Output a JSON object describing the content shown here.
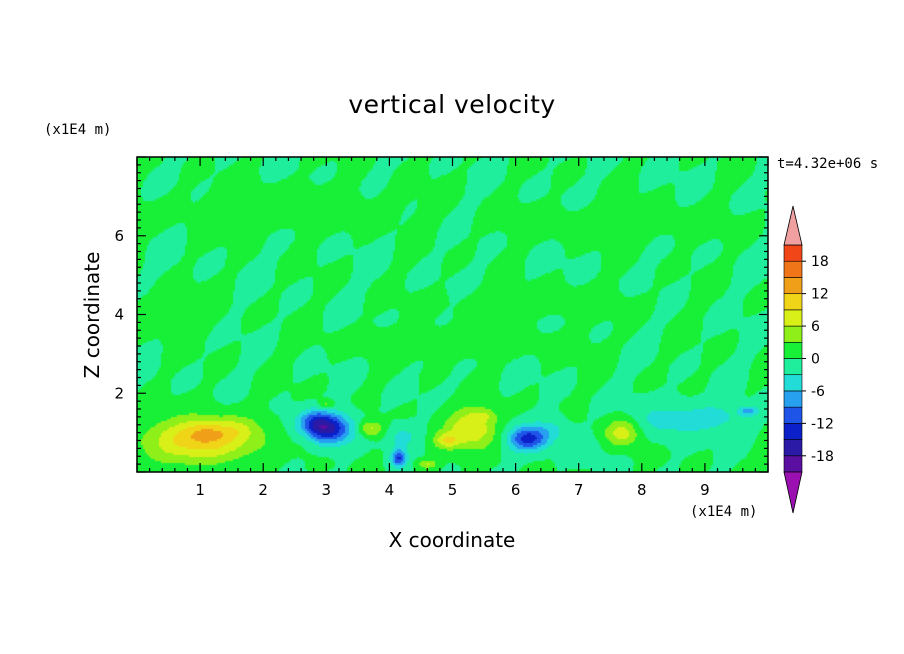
{
  "chart_data": {
    "type": "heatmap",
    "title": "vertical velocity",
    "xlabel": "X coordinate",
    "ylabel": "Z coordinate",
    "x_unit_label": "(x1E4 m)",
    "y_unit_label": "(x1E4 m)",
    "time_label": "t=4.32e+06 s",
    "xlim": [
      0,
      10
    ],
    "ylim": [
      0,
      8
    ],
    "x_ticks": [
      "1",
      "2",
      "3",
      "4",
      "5",
      "6",
      "7",
      "8",
      "9"
    ],
    "y_ticks": [
      "2",
      "4",
      "6"
    ],
    "x_tick_values": [
      1,
      2,
      3,
      4,
      5,
      6,
      7,
      8,
      9
    ],
    "y_tick_values": [
      2,
      4,
      6
    ],
    "colorbar": {
      "levels": [
        -21,
        -18,
        -15,
        -12,
        -9,
        -6,
        -3,
        0,
        3,
        6,
        9,
        12,
        15,
        18,
        21
      ],
      "labels": [
        "18",
        "12",
        "6",
        "0",
        "-6",
        "-12",
        "-18"
      ],
      "label_values": [
        18,
        12,
        6,
        0,
        -6,
        -12,
        -18
      ],
      "colors": [
        "#5a0fa0",
        "#2a1aa6",
        "#0b20c8",
        "#1e54e8",
        "#28a0f0",
        "#22dcd8",
        "#1fee9c",
        "#18f038",
        "#8ef018",
        "#d8f018",
        "#f0d418",
        "#f0a018",
        "#f07418",
        "#f04618",
        "#f01a18"
      ],
      "over_color": "#f0a0a0",
      "under_color": "#9a10b0"
    },
    "features": [
      {
        "x": 1.0,
        "z": 0.8,
        "sx": 0.85,
        "sz": 0.55,
        "w": 11
      },
      {
        "x": 1.1,
        "z": 1.0,
        "sx": 0.3,
        "sz": 0.25,
        "w": 4
      },
      {
        "x": 1.6,
        "z": 1.1,
        "sx": 0.35,
        "sz": 0.3,
        "w": 3
      },
      {
        "x": 3.0,
        "z": 1.1,
        "sx": 0.4,
        "sz": 0.38,
        "w": -16
      },
      {
        "x": 2.8,
        "z": 1.3,
        "sx": 0.25,
        "sz": 0.3,
        "w": -5
      },
      {
        "x": 2.7,
        "z": 0.9,
        "sx": 0.2,
        "sz": 0.35,
        "w": 3
      },
      {
        "x": 3.0,
        "z": 1.7,
        "sx": 0.12,
        "sz": 0.12,
        "w": 5
      },
      {
        "x": 3.7,
        "z": 1.1,
        "sx": 0.2,
        "sz": 0.2,
        "w": 7
      },
      {
        "x": 4.15,
        "z": 0.35,
        "sx": 0.12,
        "sz": 0.22,
        "w": -12
      },
      {
        "x": 4.2,
        "z": 0.9,
        "sx": 0.25,
        "sz": 0.3,
        "w": -4
      },
      {
        "x": 4.6,
        "z": 0.2,
        "sx": 0.15,
        "sz": 0.12,
        "w": 6
      },
      {
        "x": 4.9,
        "z": 0.8,
        "sx": 0.2,
        "sz": 0.2,
        "w": 7
      },
      {
        "x": 5.3,
        "z": 1.1,
        "sx": 0.4,
        "sz": 0.5,
        "w": 9
      },
      {
        "x": 5.5,
        "z": 1.45,
        "sx": 0.2,
        "sz": 0.15,
        "w": 3
      },
      {
        "x": 6.2,
        "z": 0.85,
        "sx": 0.32,
        "sz": 0.32,
        "w": -13
      },
      {
        "x": 6.6,
        "z": 1.1,
        "sx": 0.25,
        "sz": 0.3,
        "w": -3
      },
      {
        "x": 7.1,
        "z": 0.6,
        "sx": 0.25,
        "sz": 0.35,
        "w": -2
      },
      {
        "x": 7.7,
        "z": 1.0,
        "sx": 0.28,
        "sz": 0.35,
        "w": 8
      },
      {
        "x": 8.4,
        "z": 1.3,
        "sx": 0.6,
        "sz": 0.45,
        "w": -4
      },
      {
        "x": 9.2,
        "z": 1.4,
        "sx": 0.5,
        "sz": 0.35,
        "w": -3.5
      },
      {
        "x": 9.7,
        "z": 1.55,
        "sx": 0.15,
        "sz": 0.12,
        "w": -7
      },
      {
        "x": 5.0,
        "z": 3.3,
        "sx": 1.6,
        "sz": 0.35,
        "w": 1.6
      },
      {
        "x": 2.4,
        "z": 6.7,
        "sx": 1.5,
        "sz": 0.5,
        "w": 1.5
      },
      {
        "x": 7.5,
        "z": 6.3,
        "sx": 1.5,
        "sz": 0.4,
        "w": 1.4
      },
      {
        "x": 6.4,
        "z": 4.3,
        "sx": 1.3,
        "sz": 0.35,
        "w": 1.3
      },
      {
        "x": 0.5,
        "z": 4.0,
        "sx": 0.7,
        "sz": 0.5,
        "w": 1.3
      }
    ]
  }
}
